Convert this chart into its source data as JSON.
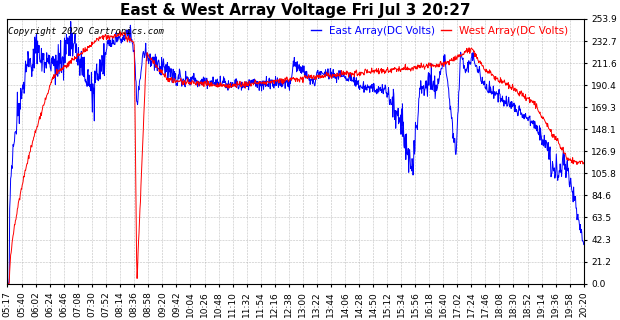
{
  "title": "East & West Array Voltage Fri Jul 3 20:27",
  "copyright": "Copyright 2020 Cartronics.com",
  "legend_east": "East Array(DC Volts)",
  "legend_west": "West Array(DC Volts)",
  "east_color": "blue",
  "west_color": "red",
  "background_color": "#ffffff",
  "grid_color": "#b0b0b0",
  "ylim": [
    0.0,
    253.9
  ],
  "yticks": [
    0.0,
    21.2,
    42.3,
    63.5,
    84.6,
    105.8,
    126.9,
    148.1,
    169.3,
    190.4,
    211.6,
    232.7,
    253.9
  ],
  "xtick_labels": [
    "05:17",
    "05:40",
    "06:02",
    "06:24",
    "06:46",
    "07:08",
    "07:30",
    "07:52",
    "08:14",
    "08:36",
    "08:58",
    "09:20",
    "09:42",
    "10:04",
    "10:26",
    "10:48",
    "11:10",
    "11:32",
    "11:54",
    "12:16",
    "12:38",
    "13:00",
    "13:22",
    "13:44",
    "14:06",
    "14:28",
    "14:50",
    "15:12",
    "15:34",
    "15:56",
    "16:18",
    "16:40",
    "17:02",
    "17:24",
    "17:46",
    "18:08",
    "18:30",
    "18:52",
    "19:14",
    "19:36",
    "19:58",
    "20:20"
  ],
  "title_fontsize": 11,
  "label_fontsize": 7.5,
  "tick_fontsize": 6.5,
  "copyright_fontsize": 6.5,
  "linewidth": 0.7
}
